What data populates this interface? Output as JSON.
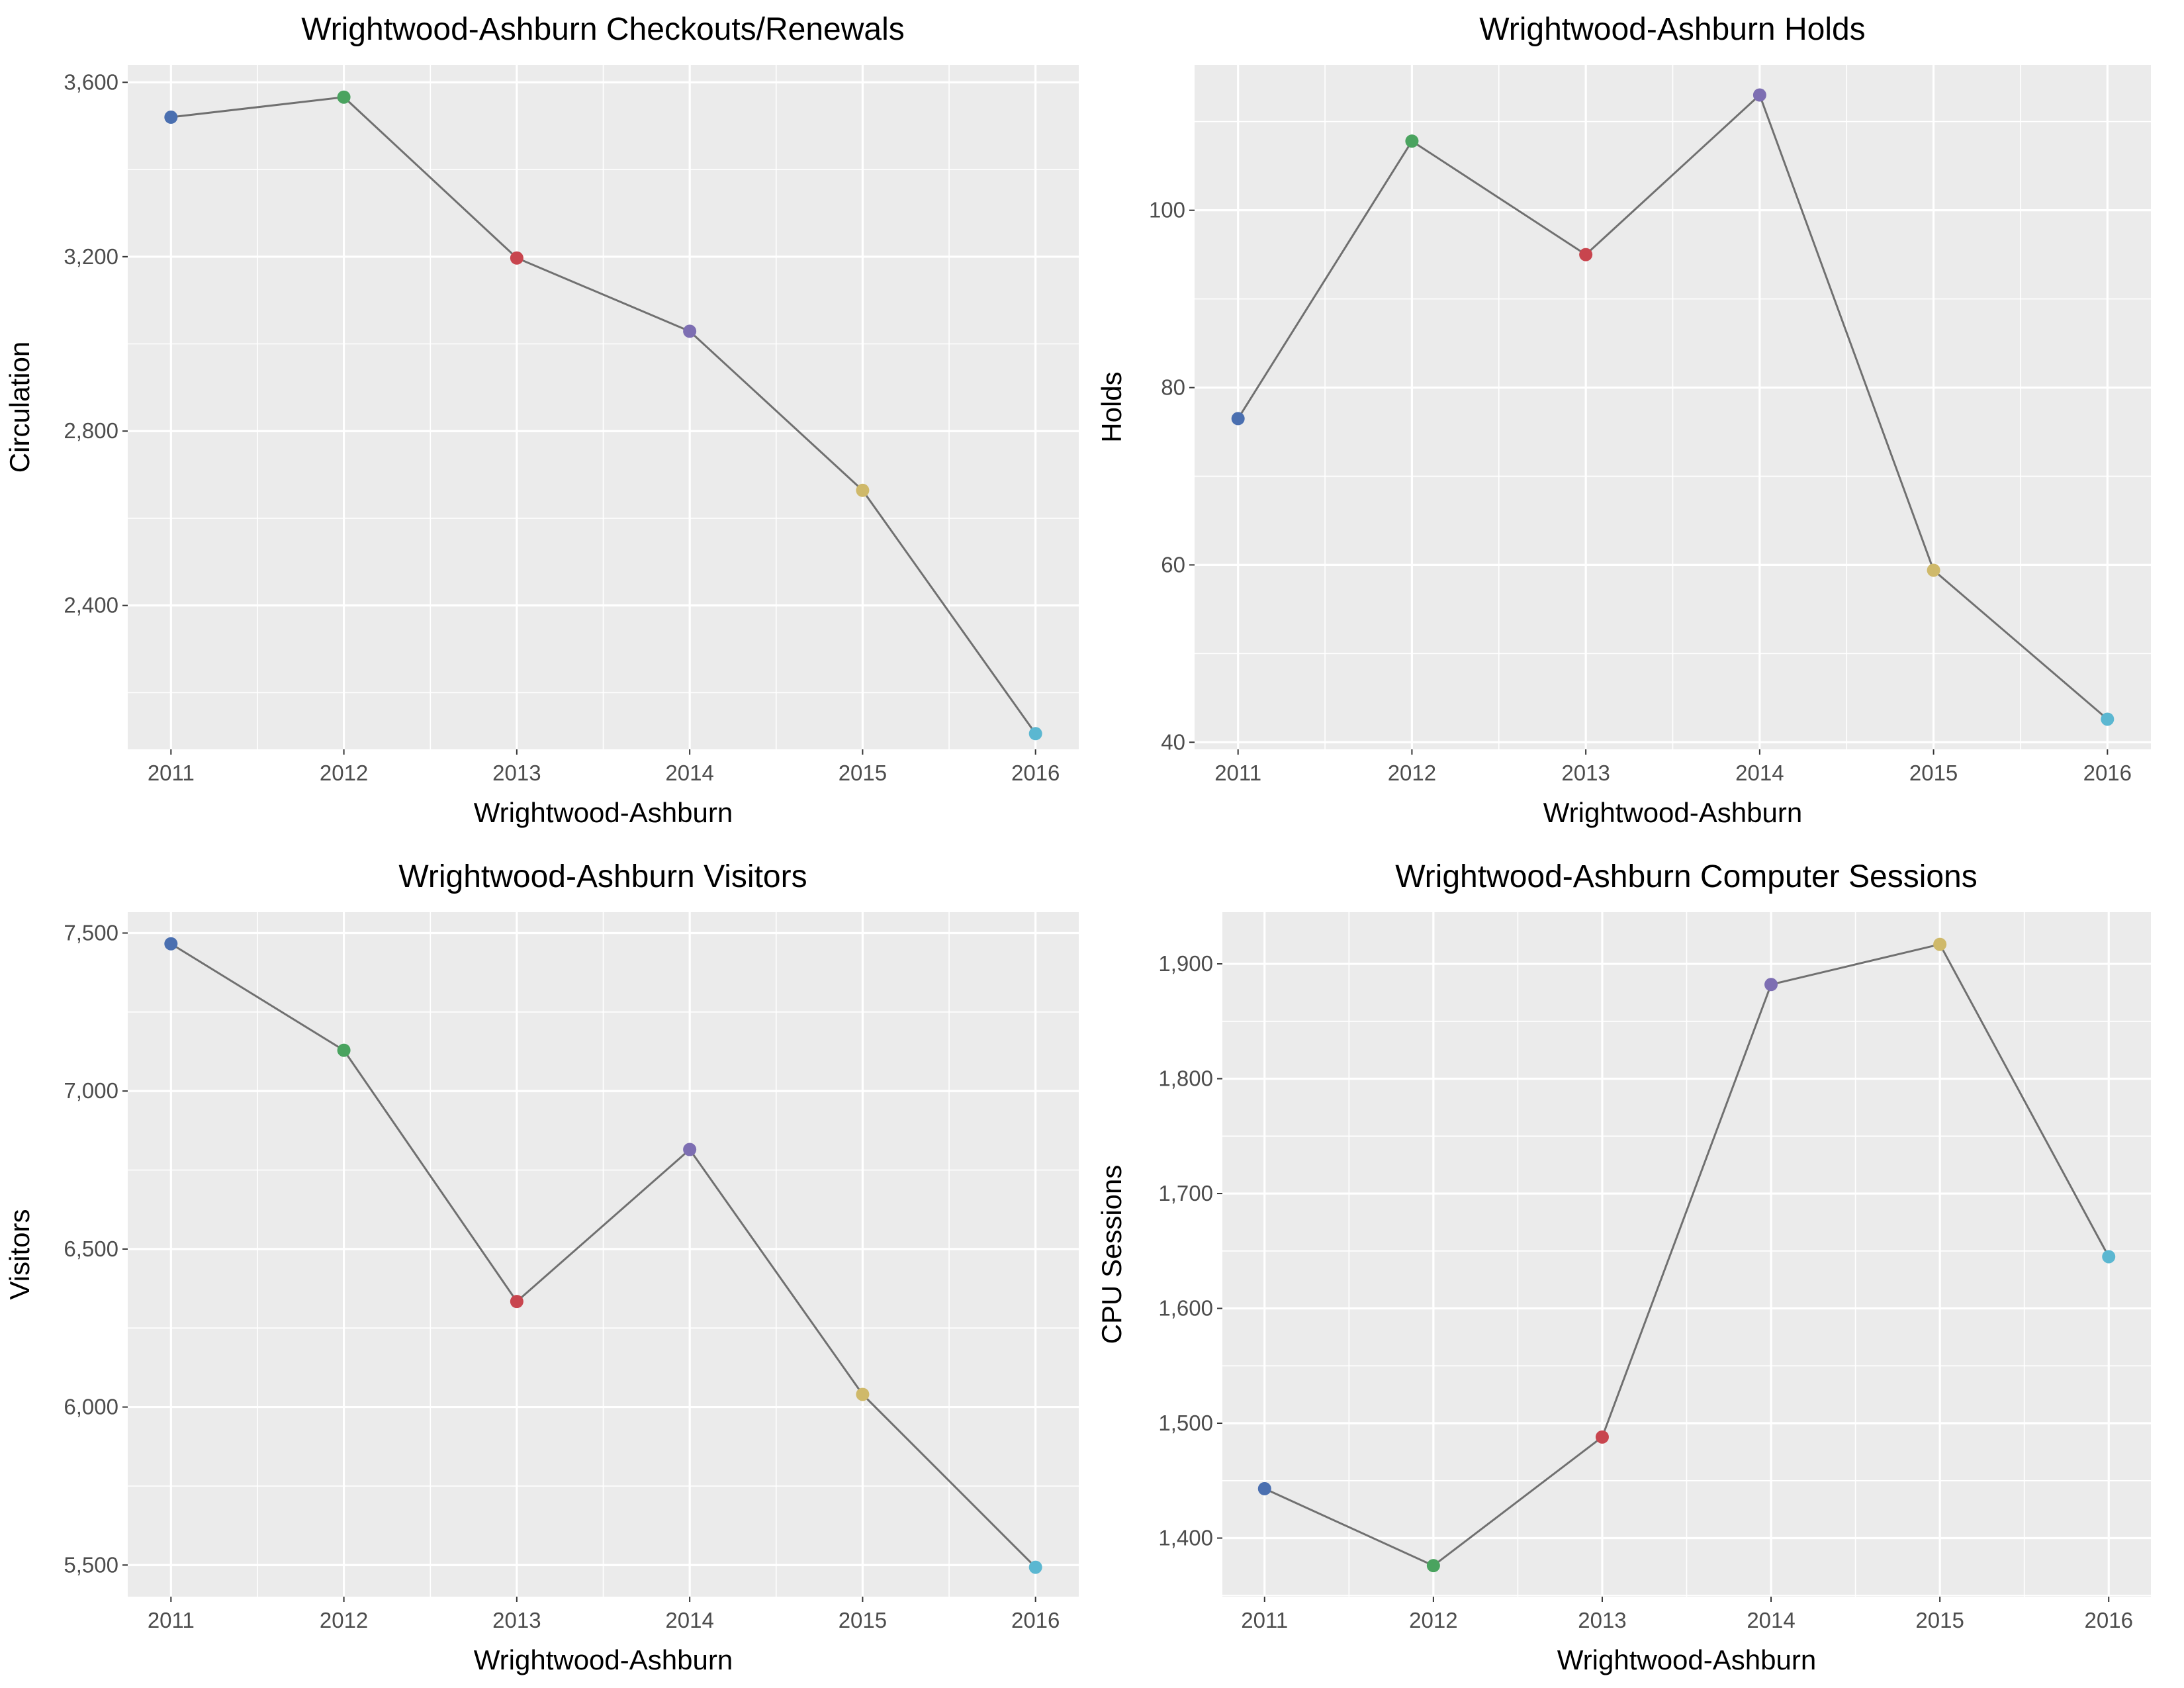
{
  "chart_data": [
    {
      "type": "line",
      "title": "Wrightwood-Ashburn Checkouts/Renewals",
      "xlabel": "Wrightwood-Ashburn",
      "ylabel": "Circulation",
      "x": [
        2011,
        2012,
        2013,
        2014,
        2015,
        2016
      ],
      "x_tick_labels": [
        "2011",
        "2012",
        "2013",
        "2014",
        "2015",
        "2016"
      ],
      "values": [
        3520,
        3566,
        3197,
        3029,
        2664,
        2106
      ],
      "point_colors": [
        "#4a6fb0",
        "#4aa35f",
        "#c8454e",
        "#7d6eb2",
        "#cfb96a",
        "#5bb7d1"
      ],
      "ylim": [
        2070,
        3640
      ],
      "y_ticks": [
        2400,
        2800,
        3200,
        3600
      ],
      "y_tick_labels": [
        "2,400",
        "2,800",
        "3,200",
        "3,600"
      ],
      "grid": true
    },
    {
      "type": "line",
      "title": "Wrightwood-Ashburn Holds",
      "xlabel": "Wrightwood-Ashburn",
      "ylabel": "Holds",
      "x": [
        2011,
        2012,
        2013,
        2014,
        2015,
        2016
      ],
      "x_tick_labels": [
        "2011",
        "2012",
        "2013",
        "2014",
        "2015",
        "2016"
      ],
      "values": [
        76.5,
        107.8,
        95,
        113,
        59.4,
        42.6
      ],
      "point_colors": [
        "#4a6fb0",
        "#4aa35f",
        "#c8454e",
        "#7d6eb2",
        "#cfb96a",
        "#5bb7d1"
      ],
      "ylim": [
        39.2,
        116.4
      ],
      "y_ticks": [
        40,
        60,
        80,
        100
      ],
      "y_tick_labels": [
        "40",
        "60",
        "80",
        "100"
      ],
      "grid": true
    },
    {
      "type": "line",
      "title": "Wrightwood-Ashburn Visitors",
      "xlabel": "Wrightwood-Ashburn",
      "ylabel": "Visitors",
      "x": [
        2011,
        2012,
        2013,
        2014,
        2015,
        2016
      ],
      "x_tick_labels": [
        "2011",
        "2012",
        "2013",
        "2014",
        "2015",
        "2016"
      ],
      "values": [
        7466,
        7129,
        6334,
        6815,
        6040,
        5493
      ],
      "point_colors": [
        "#4a6fb0",
        "#4aa35f",
        "#c8454e",
        "#7d6eb2",
        "#cfb96a",
        "#5bb7d1"
      ],
      "ylim": [
        5400,
        7566
      ],
      "y_ticks": [
        5500,
        6000,
        6500,
        7000,
        7500
      ],
      "y_tick_labels": [
        "5,500",
        "6,000",
        "6,500",
        "7,000",
        "7,500"
      ],
      "grid": true
    },
    {
      "type": "line",
      "title": "Wrightwood-Ashburn Computer Sessions",
      "xlabel": "Wrightwood-Ashburn",
      "ylabel": "CPU Sessions",
      "x": [
        2011,
        2012,
        2013,
        2014,
        2015,
        2016
      ],
      "x_tick_labels": [
        "2011",
        "2012",
        "2013",
        "2014",
        "2015",
        "2016"
      ],
      "values": [
        1443,
        1376,
        1488,
        1882,
        1917,
        1645
      ],
      "point_colors": [
        "#4a6fb0",
        "#4aa35f",
        "#c8454e",
        "#7d6eb2",
        "#cfb96a",
        "#5bb7d1"
      ],
      "ylim": [
        1349,
        1945
      ],
      "y_ticks": [
        1400,
        1500,
        1600,
        1700,
        1800,
        1900
      ],
      "y_tick_labels": [
        "1,400",
        "1,500",
        "1,600",
        "1,700",
        "1,800",
        "1,900"
      ],
      "grid": true
    }
  ],
  "colors": {
    "panel_background": "#ebebeb",
    "grid": "#ffffff",
    "line": "#707070",
    "tick_text": "#4d4d4d"
  }
}
